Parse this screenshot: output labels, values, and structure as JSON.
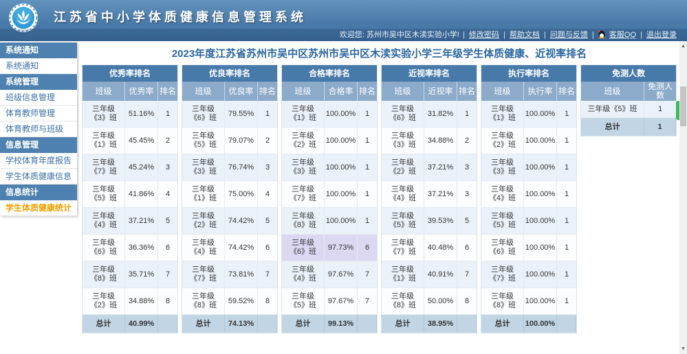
{
  "header": {
    "app_title": "江苏省中小学体质健康信息管理系统",
    "welcome": "欢迎您: 苏州市吴中区木渎实验小学!",
    "separator": "|",
    "links": {
      "change_password": "修改密码",
      "help_doc": "帮助文档",
      "feedback": "问题与反馈",
      "qq_service": "客服QQ",
      "logout": "退出登录"
    }
  },
  "sidebar": {
    "sections": [
      {
        "title": "系统通知",
        "items": [
          "系统通知"
        ]
      },
      {
        "title": "系统管理",
        "items": [
          "班级信息管理",
          "体育教师管理",
          "体育教师与班级"
        ]
      },
      {
        "title": "信息管理",
        "items": [
          "学校体育年度报告",
          "学生体质健康信息"
        ]
      },
      {
        "title": "信息统计",
        "items": [
          "学生体质健康统计"
        ]
      }
    ],
    "active_item": "学生体质健康统计"
  },
  "main": {
    "title": "2023年度江苏省苏州市吴中区苏州市吴中区木渎实验小学三年级学生体质健康、近视率排名",
    "tables": [
      {
        "title": "优秀率排名",
        "columns": [
          "班级",
          "优秀率",
          "排名"
        ],
        "rows": [
          {
            "grade": "三年级",
            "cls": "《3》班",
            "value": "51.16%",
            "rank": "1"
          },
          {
            "grade": "三年级",
            "cls": "《1》班",
            "value": "45.45%",
            "rank": "2"
          },
          {
            "grade": "三年级",
            "cls": "《7》班",
            "value": "45.24%",
            "rank": "3"
          },
          {
            "grade": "三年级",
            "cls": "《5》班",
            "value": "41.86%",
            "rank": "4"
          },
          {
            "grade": "三年级",
            "cls": "《4》班",
            "value": "37.21%",
            "rank": "5"
          },
          {
            "grade": "三年级",
            "cls": "《6》班",
            "value": "36.36%",
            "rank": "6"
          },
          {
            "grade": "三年级",
            "cls": "《8》班",
            "value": "35.71%",
            "rank": "7"
          },
          {
            "grade": "三年级",
            "cls": "《2》班",
            "value": "34.88%",
            "rank": "8"
          }
        ],
        "total_label": "总计",
        "total_value": "40.99%",
        "highlight_row": -1
      },
      {
        "title": "优良率排名",
        "columns": [
          "班级",
          "优良率",
          "排名"
        ],
        "rows": [
          {
            "grade": "三年级",
            "cls": "《6》班",
            "value": "79.55%",
            "rank": "1"
          },
          {
            "grade": "三年级",
            "cls": "《5》班",
            "value": "79.07%",
            "rank": "2"
          },
          {
            "grade": "三年级",
            "cls": "《3》班",
            "value": "76.74%",
            "rank": "3"
          },
          {
            "grade": "三年级",
            "cls": "《1》班",
            "value": "75.00%",
            "rank": "4"
          },
          {
            "grade": "三年级",
            "cls": "《2》班",
            "value": "74.42%",
            "rank": "5"
          },
          {
            "grade": "三年级",
            "cls": "《4》班",
            "value": "74.42%",
            "rank": "6"
          },
          {
            "grade": "三年级",
            "cls": "《7》班",
            "value": "73.81%",
            "rank": "7"
          },
          {
            "grade": "三年级",
            "cls": "《8》班",
            "value": "59.52%",
            "rank": "8"
          }
        ],
        "total_label": "总计",
        "total_value": "74.13%",
        "highlight_row": -1
      },
      {
        "title": "合格率排名",
        "columns": [
          "班级",
          "合格率",
          "排名"
        ],
        "rows": [
          {
            "grade": "三年级",
            "cls": "《1》班",
            "value": "100.00%",
            "rank": "1"
          },
          {
            "grade": "三年级",
            "cls": "《2》班",
            "value": "100.00%",
            "rank": "1"
          },
          {
            "grade": "三年级",
            "cls": "《3》班",
            "value": "100.00%",
            "rank": "1"
          },
          {
            "grade": "三年级",
            "cls": "《7》班",
            "value": "100.00%",
            "rank": "1"
          },
          {
            "grade": "三年级",
            "cls": "《8》班",
            "value": "100.00%",
            "rank": "1"
          },
          {
            "grade": "三年级",
            "cls": "《6》班",
            "value": "97.73%",
            "rank": "6"
          },
          {
            "grade": "三年级",
            "cls": "《4》班",
            "value": "97.67%",
            "rank": "7"
          },
          {
            "grade": "三年级",
            "cls": "《5》班",
            "value": "97.67%",
            "rank": "7"
          }
        ],
        "total_label": "总计",
        "total_value": "99.13%",
        "highlight_row": 5
      },
      {
        "title": "近视率排名",
        "columns": [
          "班级",
          "近视率",
          "排名"
        ],
        "rows": [
          {
            "grade": "三年级",
            "cls": "《6》班",
            "value": "31.82%",
            "rank": "1"
          },
          {
            "grade": "三年级",
            "cls": "《3》班",
            "value": "34.88%",
            "rank": "2"
          },
          {
            "grade": "三年级",
            "cls": "《2》班",
            "value": "37.21%",
            "rank": "3"
          },
          {
            "grade": "三年级",
            "cls": "《4》班",
            "value": "37.21%",
            "rank": "3"
          },
          {
            "grade": "三年级",
            "cls": "《5》班",
            "value": "39.53%",
            "rank": "5"
          },
          {
            "grade": "三年级",
            "cls": "《7》班",
            "value": "40.48%",
            "rank": "6"
          },
          {
            "grade": "三年级",
            "cls": "《1》班",
            "value": "40.91%",
            "rank": "7"
          },
          {
            "grade": "三年级",
            "cls": "《8》班",
            "value": "50.00%",
            "rank": "8"
          }
        ],
        "total_label": "总计",
        "total_value": "38.95%",
        "highlight_row": -1
      },
      {
        "title": "执行率排名",
        "columns": [
          "班级",
          "执行率",
          "排名"
        ],
        "rows": [
          {
            "grade": "三年级",
            "cls": "《1》班",
            "value": "100.00%",
            "rank": "1"
          },
          {
            "grade": "三年级",
            "cls": "《2》班",
            "value": "100.00%",
            "rank": "1"
          },
          {
            "grade": "三年级",
            "cls": "《3》班",
            "value": "100.00%",
            "rank": "1"
          },
          {
            "grade": "三年级",
            "cls": "《4》班",
            "value": "100.00%",
            "rank": "1"
          },
          {
            "grade": "三年级",
            "cls": "《5》班",
            "value": "100.00%",
            "rank": "1"
          },
          {
            "grade": "三年级",
            "cls": "《6》班",
            "value": "100.00%",
            "rank": "1"
          },
          {
            "grade": "三年级",
            "cls": "《7》班",
            "value": "100.00%",
            "rank": "1"
          },
          {
            "grade": "三年级",
            "cls": "《8》班",
            "value": "100.00%",
            "rank": "1"
          }
        ],
        "total_label": "总计",
        "total_value": "100.00%",
        "highlight_row": -1
      },
      {
        "title": "免测人数",
        "columns": [
          "班级",
          "免测人数"
        ],
        "rows": [
          {
            "cls": "三年级《5》班",
            "value": "1"
          }
        ],
        "total_label": "总计",
        "total_value": "1",
        "highlight_row": -1
      }
    ]
  },
  "colors": {
    "header_blue": "#4a7ba9",
    "table_title_blue": "#4779a9",
    "column_header_blue": "#8caac9",
    "row_stripe_blue": "#eaf1f8",
    "total_row_blue": "#c2d5e4",
    "highlight_lavender": "#dcd8f2",
    "active_menu_orange": "#f0a100",
    "service_widget_green": "#3cb95c"
  }
}
